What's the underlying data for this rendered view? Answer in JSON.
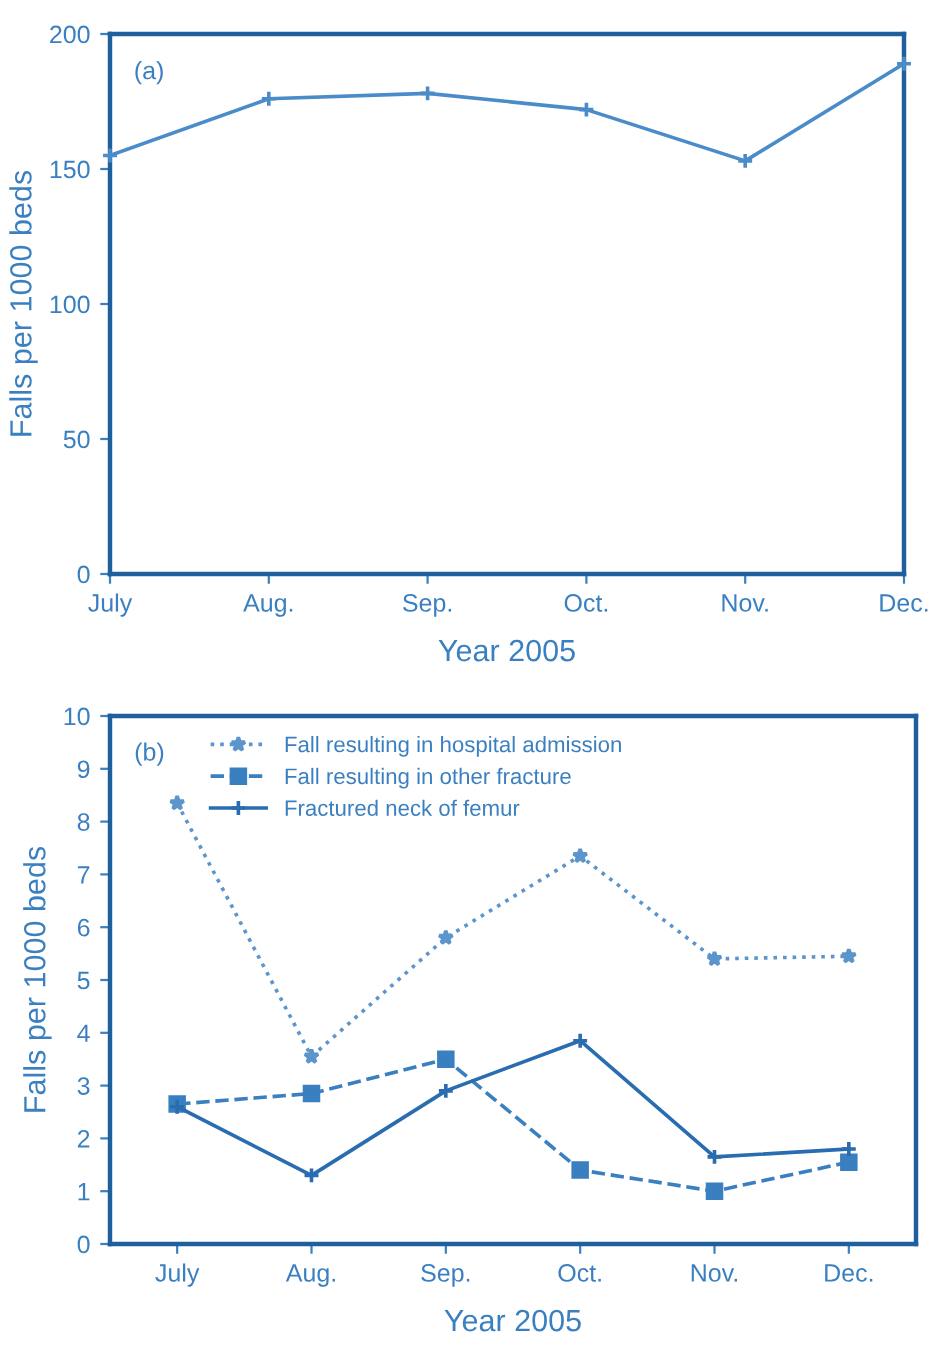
{
  "chart_data": [
    {
      "type": "line",
      "categories": [
        "July",
        "Aug.",
        "Sep.",
        "Oct.",
        "Nov.",
        "Dec."
      ],
      "xlabel": "Year 2005",
      "ylabel": "Falls per 1000 beds",
      "ylim": [
        0,
        200
      ],
      "yticks": [
        0,
        50,
        100,
        150,
        200
      ],
      "grid": false,
      "legend": false,
      "marker": "cross",
      "line_style": "solid",
      "annotations": [
        "(a)"
      ],
      "series": [
        {
          "color": "#4a8bc9",
          "values": [
            155,
            176,
            178,
            172,
            153,
            189
          ]
        }
      ]
    },
    {
      "type": "line",
      "categories": [
        "July",
        "Aug.",
        "Sep.",
        "Oct.",
        "Nov.",
        "Dec."
      ],
      "xlabel": "Year 2005",
      "ylabel": "Falls per 1000 beds",
      "ylim": [
        0,
        10
      ],
      "yticks": [
        0,
        1,
        2,
        3,
        4,
        5,
        6,
        7,
        8,
        9,
        10
      ],
      "grid": false,
      "legend": "top left",
      "annotations": [
        "(b)"
      ],
      "series": [
        {
          "name": "Fall resulting in hospital admission",
          "color": "#5b95cc",
          "marker": "star",
          "line_style": "dotted",
          "values": [
            8.35,
            3.55,
            5.8,
            7.35,
            5.4,
            5.45
          ]
        },
        {
          "name": "Fall resulting in other fracture",
          "color": "#3a7fc0",
          "marker": "square",
          "line_style": "dashed",
          "values": [
            2.65,
            2.85,
            3.5,
            1.4,
            1.0,
            1.55
          ]
        },
        {
          "name": "Fractured neck of femur",
          "color": "#2a6cb0",
          "marker": "cross",
          "line_style": "solid",
          "values": [
            2.6,
            1.3,
            2.9,
            3.85,
            1.65,
            1.8
          ]
        }
      ]
    }
  ]
}
